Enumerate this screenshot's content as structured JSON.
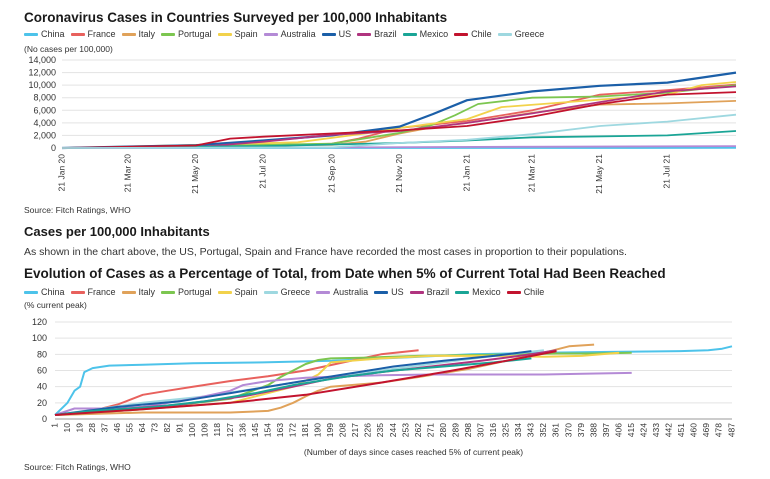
{
  "chart1": {
    "title": "Coronavirus Cases in Countries Surveyed per 100,000 Inhabitants",
    "unit_label": "(No cases per 100,000)",
    "source": "Source: Fitch Ratings, WHO"
  },
  "section": {
    "heading": "Cases per 100,000 Inhabitants",
    "text": "As shown in the chart above, the US, Portugal, Spain and France  have recorded  the  most cases in proportion  to their populations."
  },
  "chart2": {
    "title": "Evolution of Cases as a Percentage of Total, from Date when 5% of Current Total Had Been Reached",
    "unit_label": "(% current peak)",
    "source": "Source: Fitch Ratings, WHO"
  },
  "colors": {
    "China": "#4dc3ea",
    "France": "#e8615d",
    "Italy": "#e0a25a",
    "Portugal": "#7cc650",
    "Spain": "#f2d24b",
    "Australia": "#b48ad6",
    "US": "#1b5fa8",
    "Brazil": "#b0347f",
    "Mexico": "#1aa596",
    "Chile": "#c2132e",
    "Greece": "#9ed8e0"
  },
  "chart_data": [
    {
      "type": "line",
      "title": "Coronavirus Cases in Countries Surveyed per 100,000 Inhabitants",
      "ylabel": "(No cases per 100,000)",
      "ylim": [
        0,
        14000
      ],
      "yticks": [
        0,
        2000,
        4000,
        6000,
        8000,
        10000,
        12000,
        14000
      ],
      "yticks_labels": [
        "0",
        "2,000",
        "4,000",
        "6,000",
        "8,000",
        "10,000",
        "12,000",
        "14,000"
      ],
      "x_range": [
        "2020-01-21",
        "2021-09-21"
      ],
      "xticks": [
        "21 Jan 20",
        "21 Mar 20",
        "21 May 20",
        "21 Jul 20",
        "21 Sep 20",
        "21 Nov 20",
        "21 Jan 21",
        "21 Mar 21",
        "21 May 21",
        "21 Jul 21"
      ],
      "grid": "horizontal",
      "legend": "top",
      "legend_order": [
        "China",
        "France",
        "Italy",
        "Portugal",
        "Spain",
        "Australia",
        "US",
        "Brazil",
        "Mexico",
        "Chile",
        "Greece"
      ],
      "series": [
        {
          "name": "China",
          "x": [
            "2020-01-21",
            "2021-09-21"
          ],
          "values": [
            0,
            10
          ]
        },
        {
          "name": "France",
          "x": [
            "2020-01-21",
            "2020-03-21",
            "2020-07-21",
            "2020-09-21",
            "2020-10-15",
            "2020-11-21",
            "2021-01-21",
            "2021-03-21",
            "2021-05-21",
            "2021-07-21",
            "2021-09-21"
          ],
          "values": [
            0,
            20,
            280,
            700,
            1500,
            3200,
            4300,
            6000,
            8500,
            9200,
            10100
          ]
        },
        {
          "name": "Italy",
          "x": [
            "2020-01-21",
            "2020-03-21",
            "2020-05-21",
            "2020-09-21",
            "2020-10-21",
            "2020-11-21",
            "2020-12-21",
            "2021-01-21",
            "2021-03-21",
            "2021-05-21",
            "2021-07-21",
            "2021-09-21"
          ],
          "values": [
            0,
            90,
            380,
            500,
            1000,
            2300,
            3300,
            4000,
            5600,
            6900,
            7100,
            7500
          ]
        },
        {
          "name": "Portugal",
          "x": [
            "2020-01-21",
            "2020-05-21",
            "2020-09-21",
            "2020-11-21",
            "2020-12-21",
            "2021-01-10",
            "2021-01-31",
            "2021-03-21",
            "2021-05-21",
            "2021-07-21",
            "2021-09-21"
          ],
          "values": [
            0,
            300,
            700,
            2400,
            3700,
            5200,
            7000,
            8000,
            8200,
            8800,
            10000
          ]
        },
        {
          "name": "Spain",
          "x": [
            "2020-01-21",
            "2020-05-21",
            "2020-08-21",
            "2020-10-21",
            "2020-11-21",
            "2021-01-21",
            "2021-02-21",
            "2021-05-21",
            "2021-07-21",
            "2021-08-21",
            "2021-09-21"
          ],
          "values": [
            0,
            500,
            900,
            2300,
            3200,
            4600,
            6500,
            7700,
            8500,
            10000,
            10500
          ]
        },
        {
          "name": "Australia",
          "x": [
            "2020-01-21",
            "2020-09-21",
            "2021-09-21"
          ],
          "values": [
            0,
            90,
            300
          ]
        },
        {
          "name": "US",
          "x": [
            "2020-01-21",
            "2020-05-21",
            "2020-07-21",
            "2020-09-21",
            "2020-11-21",
            "2020-12-21",
            "2021-01-21",
            "2021-03-21",
            "2021-05-21",
            "2021-07-21",
            "2021-09-21"
          ],
          "values": [
            0,
            450,
            1200,
            2000,
            3400,
            5400,
            7600,
            9000,
            9900,
            10400,
            12000
          ]
        },
        {
          "name": "Brazil",
          "x": [
            "2020-01-21",
            "2020-05-21",
            "2020-07-21",
            "2020-09-21",
            "2020-11-21",
            "2021-01-21",
            "2021-03-21",
            "2021-05-21",
            "2021-07-21",
            "2021-09-21"
          ],
          "values": [
            0,
            150,
            1000,
            2100,
            2700,
            4000,
            5500,
            7300,
            9000,
            9800
          ]
        },
        {
          "name": "Mexico",
          "x": [
            "2020-01-21",
            "2020-07-21",
            "2020-11-21",
            "2021-01-21",
            "2021-03-21",
            "2021-07-21",
            "2021-09-21"
          ],
          "values": [
            0,
            300,
            800,
            1200,
            1700,
            2000,
            2700
          ]
        },
        {
          "name": "Chile",
          "x": [
            "2020-01-21",
            "2020-05-21",
            "2020-06-21",
            "2020-07-21",
            "2020-09-21",
            "2020-11-21",
            "2021-01-21",
            "2021-03-21",
            "2021-05-21",
            "2021-07-21",
            "2021-09-21"
          ],
          "values": [
            0,
            400,
            1500,
            1800,
            2300,
            2800,
            3500,
            5000,
            7000,
            8500,
            8900
          ]
        },
        {
          "name": "Greece",
          "x": [
            "2020-01-21",
            "2020-09-21",
            "2020-11-21",
            "2021-01-21",
            "2021-03-21",
            "2021-05-21",
            "2021-07-21",
            "2021-09-21"
          ],
          "values": [
            0,
            100,
            800,
            1300,
            2200,
            3500,
            4200,
            5300
          ]
        }
      ]
    },
    {
      "type": "line",
      "title": "Evolution of Cases as a Percentage of Total, from Date when 5% of Current Total Had Been Reached",
      "ylabel": "(% current peak)",
      "xlabel": "(Number of days since cases reached 5% of current peak)",
      "ylim": [
        0,
        120
      ],
      "yticks": [
        0,
        20,
        40,
        60,
        80,
        100,
        120
      ],
      "xlim": [
        1,
        487
      ],
      "xticks": [
        1,
        10,
        19,
        28,
        37,
        46,
        55,
        64,
        73,
        82,
        91,
        100,
        109,
        118,
        127,
        136,
        145,
        154,
        163,
        172,
        181,
        190,
        199,
        208,
        217,
        226,
        235,
        244,
        253,
        262,
        271,
        280,
        289,
        298,
        307,
        316,
        325,
        334,
        343,
        352,
        361,
        370,
        379,
        388,
        397,
        406,
        415,
        424,
        433,
        442,
        451,
        460,
        469,
        478,
        487
      ],
      "grid": "horizontal",
      "legend": "top",
      "legend_order": [
        "China",
        "France",
        "Italy",
        "Portugal",
        "Spain",
        "Greece",
        "Australia",
        "US",
        "Brazil",
        "Mexico",
        "Chile"
      ],
      "series": [
        {
          "name": "China",
          "x": [
            1,
            10,
            15,
            19,
            22,
            28,
            40,
            64,
            100,
            150,
            200,
            250,
            300,
            350,
            400,
            450,
            470,
            480,
            487
          ],
          "values": [
            5,
            20,
            35,
            40,
            58,
            63,
            66,
            67,
            69,
            70,
            72,
            76,
            80,
            82,
            83,
            84,
            85,
            87,
            90
          ]
        },
        {
          "name": "France",
          "x": [
            1,
            28,
            46,
            64,
            82,
            100,
            127,
            154,
            181,
            208,
            235,
            262
          ],
          "values": [
            5,
            10,
            18,
            30,
            35,
            40,
            47,
            53,
            60,
            70,
            80,
            85
          ]
        },
        {
          "name": "Italy",
          "x": [
            1,
            64,
            127,
            154,
            163,
            172,
            181,
            190,
            199,
            235,
            262,
            298,
            325,
            352,
            370,
            388
          ],
          "values": [
            5,
            8,
            8,
            10,
            14,
            20,
            28,
            35,
            40,
            45,
            52,
            62,
            72,
            82,
            90,
            92
          ]
        },
        {
          "name": "Portugal",
          "x": [
            1,
            64,
            127,
            154,
            163,
            172,
            181,
            190,
            199,
            226,
            262,
            298,
            334,
            361,
            388,
            415
          ],
          "values": [
            5,
            12,
            25,
            42,
            52,
            60,
            68,
            73,
            75,
            76,
            78,
            79,
            80,
            81,
            81,
            82
          ]
        },
        {
          "name": "Spain",
          "x": [
            1,
            64,
            127,
            172,
            190,
            199,
            235,
            271,
            316,
            352,
            379,
            406
          ],
          "values": [
            5,
            12,
            20,
            40,
            55,
            70,
            75,
            78,
            78,
            77,
            78,
            82
          ]
        },
        {
          "name": "Greece",
          "x": [
            1,
            64,
            109,
            154,
            190,
            235,
            271,
            316,
            352
          ],
          "values": [
            5,
            20,
            28,
            40,
            50,
            60,
            68,
            78,
            85
          ]
        },
        {
          "name": "Australia",
          "x": [
            1,
            15,
            37,
            64,
            100,
            127,
            136,
            154,
            181,
            208,
            235,
            271,
            316,
            352,
            380,
            415
          ],
          "values": [
            5,
            13,
            13,
            15,
            25,
            35,
            42,
            47,
            51,
            53,
            54,
            55,
            55,
            55,
            56,
            57
          ]
        },
        {
          "name": "US",
          "x": [
            1,
            46,
            91,
            127,
            172,
            208,
            244,
            280,
            316,
            343
          ],
          "values": [
            5,
            15,
            22,
            32,
            45,
            55,
            65,
            72,
            78,
            84
          ]
        },
        {
          "name": "Brazil",
          "x": [
            1,
            46,
            91,
            136,
            172,
            199,
            235,
            271,
            307,
            343,
            361
          ],
          "values": [
            5,
            12,
            18,
            28,
            40,
            50,
            58,
            65,
            72,
            80,
            85
          ]
        },
        {
          "name": "Mexico",
          "x": [
            1,
            28,
            73,
            109,
            145,
            172,
            208,
            244,
            280,
            316,
            343
          ],
          "values": [
            5,
            10,
            15,
            22,
            32,
            42,
            52,
            60,
            65,
            70,
            75
          ]
        },
        {
          "name": "Chile",
          "x": [
            1,
            64,
            127,
            181,
            235,
            280,
            325,
            361
          ],
          "values": [
            5,
            12,
            20,
            30,
            45,
            58,
            72,
            84
          ]
        }
      ]
    }
  ]
}
